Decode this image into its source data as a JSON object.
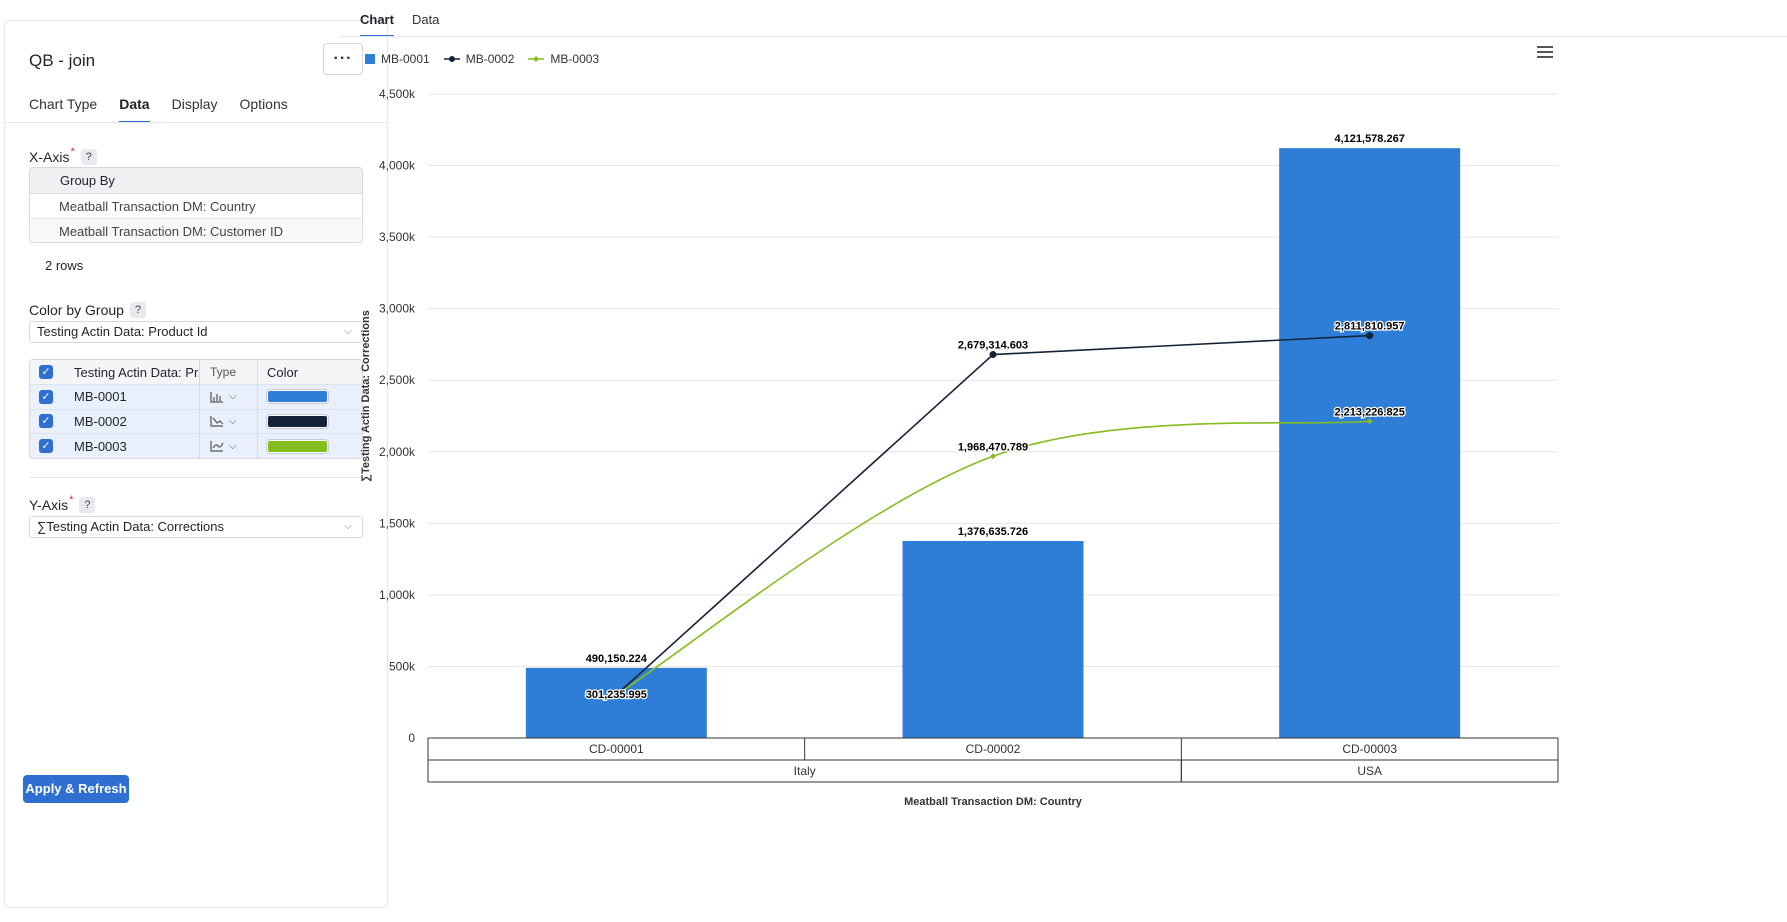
{
  "left_panel": {
    "title": "QB - join",
    "more_label": "···",
    "tabs": [
      {
        "label": "Chart Type"
      },
      {
        "label": "Data"
      },
      {
        "label": "Display"
      },
      {
        "label": "Options"
      }
    ],
    "x_axis": {
      "label": "X-Axis",
      "help": "?",
      "group_by_header": "Group By",
      "rows": [
        "Meatball Transaction DM: Country",
        "Meatball Transaction DM: Customer ID"
      ],
      "row_count": "2 rows"
    },
    "color_by": {
      "label": "Color by Group",
      "help": "?",
      "value": "Testing Actin Data: Product Id"
    },
    "series_table": {
      "headers": {
        "name": "Testing Actin Data: Pr...",
        "type": "Type",
        "color": "Color"
      },
      "rows": [
        {
          "name": "MB-0001",
          "type_icon": "bar-chart-icon",
          "color": "#2e7dd7"
        },
        {
          "name": "MB-0002",
          "type_icon": "line-chart-icon",
          "color": "#14233a"
        },
        {
          "name": "MB-0003",
          "type_icon": "spline-chart-icon",
          "color": "#84bd1e"
        }
      ]
    },
    "y_axis": {
      "label": "Y-Axis",
      "help": "?",
      "value": "∑Testing Actin Data: Corrections"
    },
    "apply_button": "Apply & Refresh"
  },
  "right_panel": {
    "tabs": [
      {
        "label": "Chart"
      },
      {
        "label": "Data"
      }
    ]
  },
  "chart_data": {
    "type": "bar",
    "categories": [
      "CD-00001",
      "CD-00002",
      "CD-00003"
    ],
    "groups": [
      {
        "label": "Italy",
        "span": 2
      },
      {
        "label": "USA",
        "span": 1
      }
    ],
    "series": [
      {
        "name": "MB-0001",
        "type": "bar",
        "color": "#2e7dd7",
        "values": [
          490150.224,
          1376635.726,
          4121578.267
        ],
        "labels": [
          "490,150.224",
          "1,376,635.726",
          "4,121,578.267"
        ]
      },
      {
        "name": "MB-0002",
        "type": "line",
        "color": "#14233a",
        "values": [
          301235.995,
          2679314.603,
          2811810.957
        ],
        "labels": [
          "301,235.995",
          "2,679,314.603",
          "2,811,810.957"
        ]
      },
      {
        "name": "MB-0003",
        "type": "spline",
        "color": "#84bd1e",
        "values": [
          301235.995,
          1968470.789,
          2213226.825
        ],
        "labels": [
          "301,235.995",
          "1,968,470.789",
          "2,213,226.825"
        ]
      }
    ],
    "yticks": [
      "0",
      "500k",
      "1,000k",
      "1,500k",
      "2,000k",
      "2,500k",
      "3,000k",
      "3,500k",
      "4,000k",
      "4,500k"
    ],
    "ylim": [
      0,
      4500000
    ],
    "xlabel": "Meatball Transaction DM: Country",
    "ylabel": "∑Testing Actin Data: Corrections",
    "legend_position": "top-left",
    "grid": true
  }
}
